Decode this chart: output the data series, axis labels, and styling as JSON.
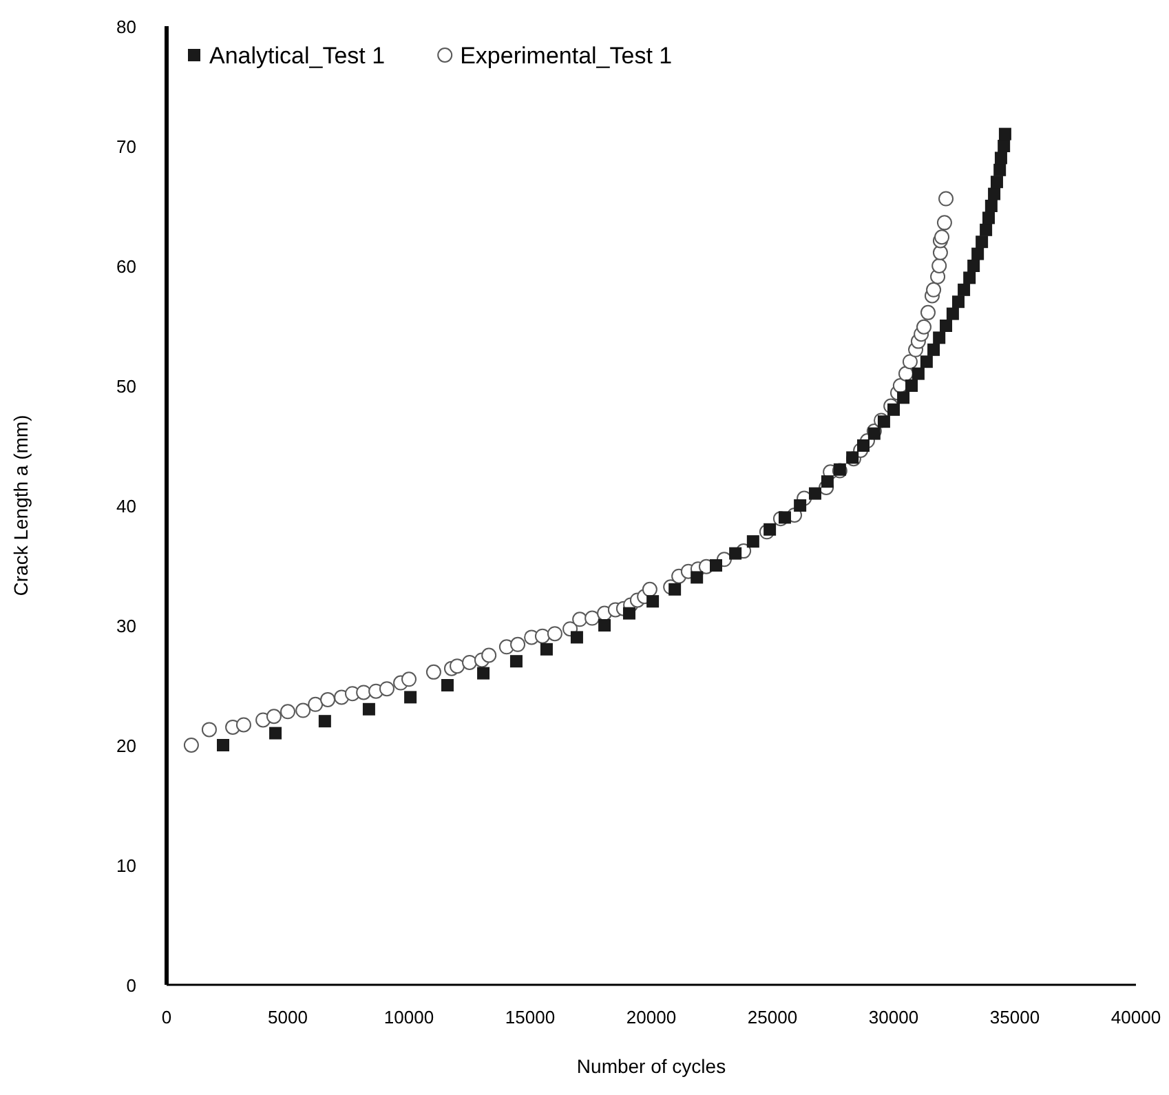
{
  "chart_data": {
    "type": "scatter",
    "xlabel": "Number of cycles",
    "ylabel": "Crack Length a  (mm)",
    "xlim": [
      0,
      40000
    ],
    "ylim": [
      0,
      80
    ],
    "xticks": [
      0,
      5000,
      10000,
      15000,
      20000,
      25000,
      30000,
      35000,
      40000
    ],
    "yticks": [
      0,
      10,
      20,
      30,
      40,
      50,
      60,
      70,
      80
    ],
    "grid": false,
    "legend": "top left",
    "series": [
      {
        "name": "Analytical_Test 1",
        "color": "#1a1a1a",
        "marker": "square",
        "x": [
          2330,
          4490,
          6530,
          8350,
          10060,
          11590,
          13070,
          14430,
          15680,
          16930,
          18070,
          19090,
          20060,
          20970,
          21880,
          22670,
          23470,
          24200,
          24890,
          25510,
          26140,
          26760,
          27270,
          27780,
          28300,
          28750,
          29200,
          29600,
          30000,
          30400,
          30740,
          31020,
          31360,
          31650,
          31880,
          32160,
          32440,
          32670,
          32900,
          33130,
          33300,
          33470,
          33640,
          33810,
          33920,
          34030,
          34150,
          34260,
          34380,
          34430,
          34550,
          34600
        ],
        "values": [
          20,
          21,
          22,
          23,
          24,
          25,
          26,
          27,
          28,
          29,
          30,
          31,
          32,
          33,
          34,
          35,
          36,
          37,
          38,
          39,
          40,
          41,
          42,
          43,
          44,
          45,
          46,
          47,
          48,
          49,
          50,
          51,
          52,
          53,
          54,
          55,
          56,
          57,
          58,
          59,
          60,
          61,
          62,
          63,
          64,
          65,
          66,
          67,
          68,
          69,
          70,
          71
        ]
      },
      {
        "name": "Experimental_Test 1",
        "color": "#595959",
        "marker": "circle",
        "x": [
          1020,
          1760,
          2730,
          3180,
          3980,
          4430,
          5000,
          5630,
          6140,
          6650,
          7220,
          7670,
          8130,
          8640,
          9090,
          9660,
          10000,
          11020,
          11760,
          11990,
          12500,
          13010,
          13300,
          14030,
          14490,
          15060,
          15510,
          16020,
          16650,
          17050,
          17560,
          18070,
          18520,
          18860,
          19150,
          19430,
          19720,
          19940,
          20800,
          21140,
          21530,
          21930,
          22270,
          23010,
          23810,
          24770,
          25340,
          25910,
          26310,
          27220,
          27390,
          27780,
          28350,
          28640,
          28920,
          29200,
          29490,
          29890,
          30170,
          30280,
          30510,
          30680,
          30910,
          31020,
          31140,
          31250,
          31420,
          31590,
          31650,
          31820,
          31880,
          31930,
          31930,
          31990,
          32100,
          32160
        ],
        "values": [
          20.0,
          21.3,
          21.5,
          21.7,
          22.1,
          22.4,
          22.8,
          22.9,
          23.4,
          23.8,
          24.0,
          24.3,
          24.4,
          24.5,
          24.7,
          25.2,
          25.5,
          26.1,
          26.4,
          26.6,
          26.9,
          27.1,
          27.5,
          28.2,
          28.4,
          29.0,
          29.1,
          29.3,
          29.7,
          30.5,
          30.6,
          31.0,
          31.3,
          31.4,
          31.7,
          32.1,
          32.4,
          33.0,
          33.2,
          34.1,
          34.5,
          34.7,
          34.9,
          35.5,
          36.2,
          37.8,
          38.9,
          39.2,
          40.6,
          41.5,
          42.8,
          42.9,
          43.9,
          44.6,
          45.4,
          46.2,
          47.1,
          48.3,
          49.4,
          50.0,
          51.0,
          52.0,
          53.0,
          53.7,
          54.3,
          54.9,
          56.1,
          57.5,
          58.0,
          59.1,
          60.0,
          61.1,
          62.1,
          62.4,
          63.6,
          65.6
        ]
      }
    ]
  }
}
